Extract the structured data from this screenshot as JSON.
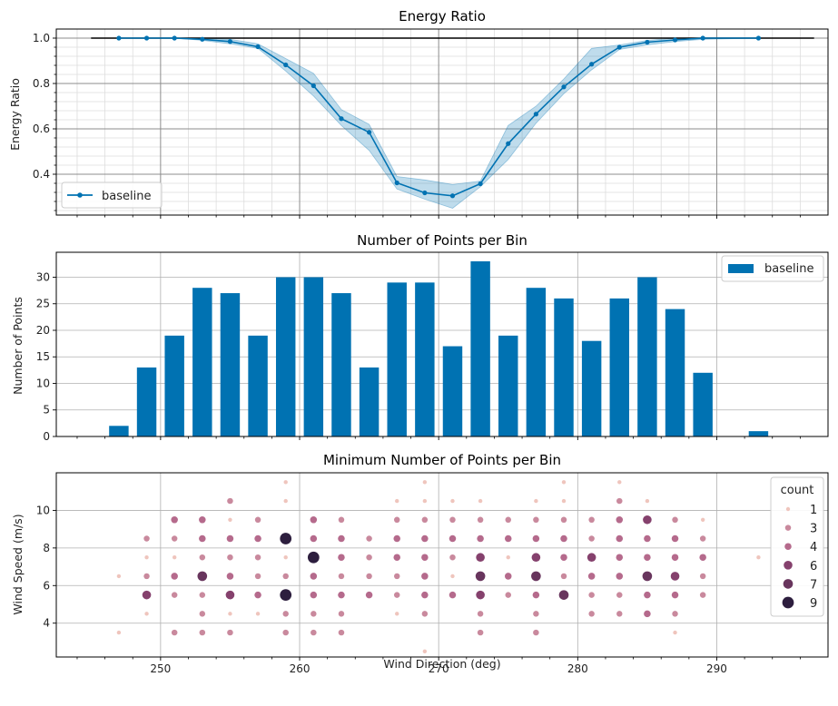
{
  "chart_data": [
    {
      "type": "line",
      "title": "Energy Ratio",
      "xlabel": "",
      "ylabel": "Energy Ratio",
      "xlim": [
        242.5,
        298
      ],
      "ylim": [
        0.22,
        1.04
      ],
      "yticks": [
        0.4,
        0.6,
        0.8,
        1.0
      ],
      "ytick_labels": [
        "0.4",
        "0.6",
        "0.8",
        "1.0"
      ],
      "grid": true,
      "legend": {
        "placement": "bottom-left",
        "entries": [
          "baseline"
        ]
      },
      "colors": {
        "series": "#0072b2",
        "band": "#0072b2",
        "reference": "#000000"
      },
      "reference_line": {
        "y": 1.0,
        "x": [
          245,
          297
        ]
      },
      "series": [
        {
          "name": "baseline",
          "x": [
            247,
            249,
            251,
            253,
            255,
            257,
            259,
            261,
            263,
            265,
            267,
            269,
            271,
            273,
            275,
            277,
            279,
            281,
            283,
            285,
            287,
            289,
            293
          ],
          "y": [
            1.0,
            1.0,
            1.0,
            0.995,
            0.985,
            0.962,
            0.882,
            0.79,
            0.645,
            0.585,
            0.362,
            0.318,
            0.305,
            0.358,
            0.535,
            0.665,
            0.785,
            0.885,
            0.96,
            0.982,
            0.992,
            1.0,
            1.0
          ],
          "lower": [
            1.0,
            1.0,
            1.0,
            0.99,
            0.975,
            0.955,
            0.855,
            0.745,
            0.615,
            0.505,
            0.335,
            0.29,
            0.25,
            0.345,
            0.465,
            0.625,
            0.755,
            0.86,
            0.95,
            0.97,
            0.985,
            0.995,
            1.0
          ],
          "upper": [
            1.0,
            1.0,
            1.0,
            1.0,
            0.995,
            0.975,
            0.91,
            0.845,
            0.685,
            0.62,
            0.39,
            0.375,
            0.355,
            0.37,
            0.615,
            0.7,
            0.82,
            0.955,
            0.97,
            0.99,
            1.0,
            1.0,
            1.0
          ]
        }
      ]
    },
    {
      "type": "bar",
      "title": "Number of Points per Bin",
      "xlabel": "",
      "ylabel": "Number of Points",
      "xlim": [
        242.5,
        298
      ],
      "ylim": [
        0,
        34.7
      ],
      "yticks": [
        0,
        5,
        10,
        15,
        20,
        25,
        30
      ],
      "ytick_labels": [
        "0",
        "5",
        "10",
        "15",
        "20",
        "25",
        "30"
      ],
      "grid": true,
      "legend": {
        "placement": "top-right",
        "entries": [
          "baseline"
        ]
      },
      "colors": {
        "bar": "#0072b2"
      },
      "bar_width": 1.4,
      "series": [
        {
          "name": "baseline",
          "x": [
            247,
            249,
            251,
            253,
            255,
            257,
            259,
            261,
            263,
            265,
            267,
            269,
            271,
            273,
            275,
            277,
            279,
            281,
            283,
            285,
            287,
            289,
            293
          ],
          "values": [
            2,
            13,
            19,
            28,
            27,
            19,
            30,
            30,
            27,
            13,
            29,
            29,
            17,
            33,
            19,
            28,
            26,
            18,
            26,
            30,
            24,
            12,
            1
          ]
        }
      ]
    },
    {
      "type": "scatter",
      "title": "Minimum Number of Points per Bin",
      "xlabel": "Wind Direction (deg)",
      "ylabel": "Wind Speed (m/s)",
      "xlim": [
        242.5,
        298
      ],
      "ylim": [
        2.2,
        12
      ],
      "xticks": [
        250,
        260,
        270,
        280,
        290
      ],
      "xtick_labels": [
        "250",
        "260",
        "270",
        "280",
        "290"
      ],
      "yticks": [
        4,
        6,
        8,
        10
      ],
      "ytick_labels": [
        "4",
        "6",
        "8",
        "10"
      ],
      "grid": true,
      "legend": {
        "placement": "top-right",
        "title": "count",
        "entries": [
          "1",
          "3",
          "4",
          "6",
          "7",
          "9"
        ]
      },
      "legend_levels": [
        1,
        3,
        4,
        6,
        7,
        9
      ],
      "colors": {
        "low": "#efc5bd",
        "high": "#2d1e3e"
      },
      "points": [
        [
          247,
          3.5,
          1
        ],
        [
          247,
          6.5,
          1
        ],
        [
          249,
          4.5,
          1
        ],
        [
          249,
          5.5,
          6
        ],
        [
          249,
          6.5,
          3
        ],
        [
          249,
          7.5,
          1
        ],
        [
          249,
          8.5,
          3
        ],
        [
          251,
          3.5,
          3
        ],
        [
          251,
          5.5,
          3
        ],
        [
          251,
          6.5,
          4
        ],
        [
          251,
          7.5,
          1
        ],
        [
          251,
          8.5,
          3
        ],
        [
          251,
          9.5,
          4
        ],
        [
          253,
          3.5,
          3
        ],
        [
          253,
          4.5,
          3
        ],
        [
          253,
          5.5,
          3
        ],
        [
          253,
          6.5,
          7
        ],
        [
          253,
          7.5,
          3
        ],
        [
          253,
          8.5,
          4
        ],
        [
          253,
          9.5,
          4
        ],
        [
          255,
          3.5,
          3
        ],
        [
          255,
          4.5,
          1
        ],
        [
          255,
          5.5,
          6
        ],
        [
          255,
          6.5,
          4
        ],
        [
          255,
          7.5,
          3
        ],
        [
          255,
          8.5,
          4
        ],
        [
          255,
          9.5,
          1
        ],
        [
          255,
          10.5,
          3
        ],
        [
          257,
          4.5,
          1
        ],
        [
          257,
          5.5,
          4
        ],
        [
          257,
          6.5,
          3
        ],
        [
          257,
          7.5,
          3
        ],
        [
          257,
          8.5,
          4
        ],
        [
          257,
          9.5,
          3
        ],
        [
          259,
          3.5,
          3
        ],
        [
          259,
          4.5,
          3
        ],
        [
          259,
          5.5,
          9
        ],
        [
          259,
          6.5,
          3
        ],
        [
          259,
          7.5,
          1
        ],
        [
          259,
          8.5,
          9
        ],
        [
          259,
          10.5,
          1
        ],
        [
          259,
          11.5,
          1
        ],
        [
          261,
          3.5,
          3
        ],
        [
          261,
          4.5,
          3
        ],
        [
          261,
          5.5,
          4
        ],
        [
          261,
          6.5,
          4
        ],
        [
          261,
          7.5,
          9
        ],
        [
          261,
          8.5,
          4
        ],
        [
          261,
          9.5,
          4
        ],
        [
          263,
          3.5,
          3
        ],
        [
          263,
          4.5,
          3
        ],
        [
          263,
          5.5,
          4
        ],
        [
          263,
          6.5,
          3
        ],
        [
          263,
          7.5,
          4
        ],
        [
          263,
          8.5,
          4
        ],
        [
          263,
          9.5,
          3
        ],
        [
          265,
          5.5,
          4
        ],
        [
          265,
          6.5,
          3
        ],
        [
          265,
          7.5,
          3
        ],
        [
          265,
          8.5,
          3
        ],
        [
          267,
          4.5,
          1
        ],
        [
          267,
          5.5,
          3
        ],
        [
          267,
          6.5,
          3
        ],
        [
          267,
          7.5,
          4
        ],
        [
          267,
          8.5,
          4
        ],
        [
          267,
          9.5,
          3
        ],
        [
          267,
          10.5,
          1
        ],
        [
          269,
          2.5,
          1
        ],
        [
          269,
          4.5,
          3
        ],
        [
          269,
          5.5,
          4
        ],
        [
          269,
          6.5,
          4
        ],
        [
          269,
          7.5,
          4
        ],
        [
          269,
          8.5,
          4
        ],
        [
          269,
          9.5,
          3
        ],
        [
          269,
          10.5,
          1
        ],
        [
          269,
          11.5,
          1
        ],
        [
          271,
          5.5,
          4
        ],
        [
          271,
          6.5,
          1
        ],
        [
          271,
          7.5,
          3
        ],
        [
          271,
          8.5,
          4
        ],
        [
          271,
          9.5,
          3
        ],
        [
          271,
          10.5,
          1
        ],
        [
          273,
          3.5,
          3
        ],
        [
          273,
          4.5,
          3
        ],
        [
          273,
          5.5,
          6
        ],
        [
          273,
          6.5,
          7
        ],
        [
          273,
          7.5,
          6
        ],
        [
          273,
          8.5,
          4
        ],
        [
          273,
          9.5,
          3
        ],
        [
          273,
          10.5,
          1
        ],
        [
          275,
          5.5,
          3
        ],
        [
          275,
          6.5,
          4
        ],
        [
          275,
          7.5,
          1
        ],
        [
          275,
          8.5,
          4
        ],
        [
          275,
          9.5,
          3
        ],
        [
          277,
          3.5,
          3
        ],
        [
          277,
          4.5,
          3
        ],
        [
          277,
          5.5,
          4
        ],
        [
          277,
          6.5,
          7
        ],
        [
          277,
          7.5,
          6
        ],
        [
          277,
          8.5,
          4
        ],
        [
          277,
          9.5,
          3
        ],
        [
          277,
          10.5,
          1
        ],
        [
          279,
          5.5,
          7
        ],
        [
          279,
          6.5,
          3
        ],
        [
          279,
          7.5,
          4
        ],
        [
          279,
          8.5,
          4
        ],
        [
          279,
          9.5,
          3
        ],
        [
          279,
          10.5,
          1
        ],
        [
          279,
          11.5,
          1
        ],
        [
          281,
          4.5,
          3
        ],
        [
          281,
          5.5,
          3
        ],
        [
          281,
          6.5,
          4
        ],
        [
          281,
          7.5,
          6
        ],
        [
          281,
          8.5,
          3
        ],
        [
          281,
          9.5,
          3
        ],
        [
          283,
          4.5,
          3
        ],
        [
          283,
          5.5,
          3
        ],
        [
          283,
          6.5,
          4
        ],
        [
          283,
          7.5,
          4
        ],
        [
          283,
          8.5,
          4
        ],
        [
          283,
          9.5,
          4
        ],
        [
          283,
          10.5,
          3
        ],
        [
          283,
          11.5,
          1
        ],
        [
          285,
          4.5,
          4
        ],
        [
          285,
          5.5,
          4
        ],
        [
          285,
          6.5,
          7
        ],
        [
          285,
          7.5,
          4
        ],
        [
          285,
          8.5,
          4
        ],
        [
          285,
          9.5,
          6
        ],
        [
          285,
          10.5,
          1
        ],
        [
          287,
          3.5,
          1
        ],
        [
          287,
          4.5,
          3
        ],
        [
          287,
          5.5,
          4
        ],
        [
          287,
          6.5,
          6
        ],
        [
          287,
          7.5,
          4
        ],
        [
          287,
          8.5,
          4
        ],
        [
          287,
          9.5,
          3
        ],
        [
          289,
          5.5,
          3
        ],
        [
          289,
          6.5,
          3
        ],
        [
          289,
          7.5,
          4
        ],
        [
          289,
          8.5,
          3
        ],
        [
          289,
          9.5,
          1
        ],
        [
          293,
          7.5,
          1
        ]
      ]
    }
  ]
}
